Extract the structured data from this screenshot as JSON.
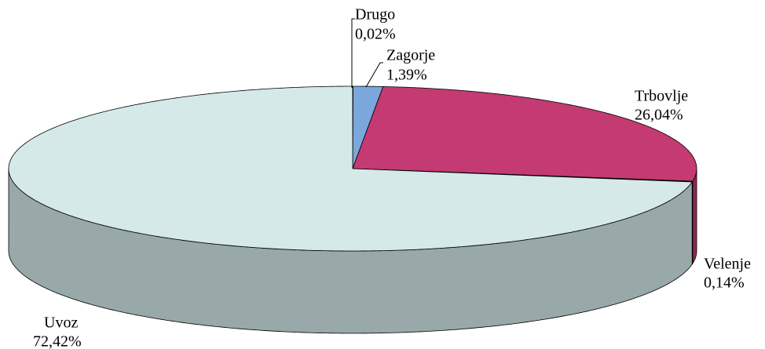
{
  "chart_data": {
    "type": "pie3d",
    "categories": [
      "Drugo",
      "Zagorje",
      "Trbovlje",
      "Velenje",
      "Uvoz"
    ],
    "values": [
      0.02,
      1.39,
      26.04,
      0.14,
      72.42
    ],
    "value_labels": [
      "0,02%",
      "1,39%",
      "26,04%",
      "0,14%",
      "72,42%"
    ],
    "colors": [
      "#4f81bd",
      "#7ba7dc",
      "#c43a72",
      "#7a2a48",
      "#d5e9e9"
    ]
  }
}
